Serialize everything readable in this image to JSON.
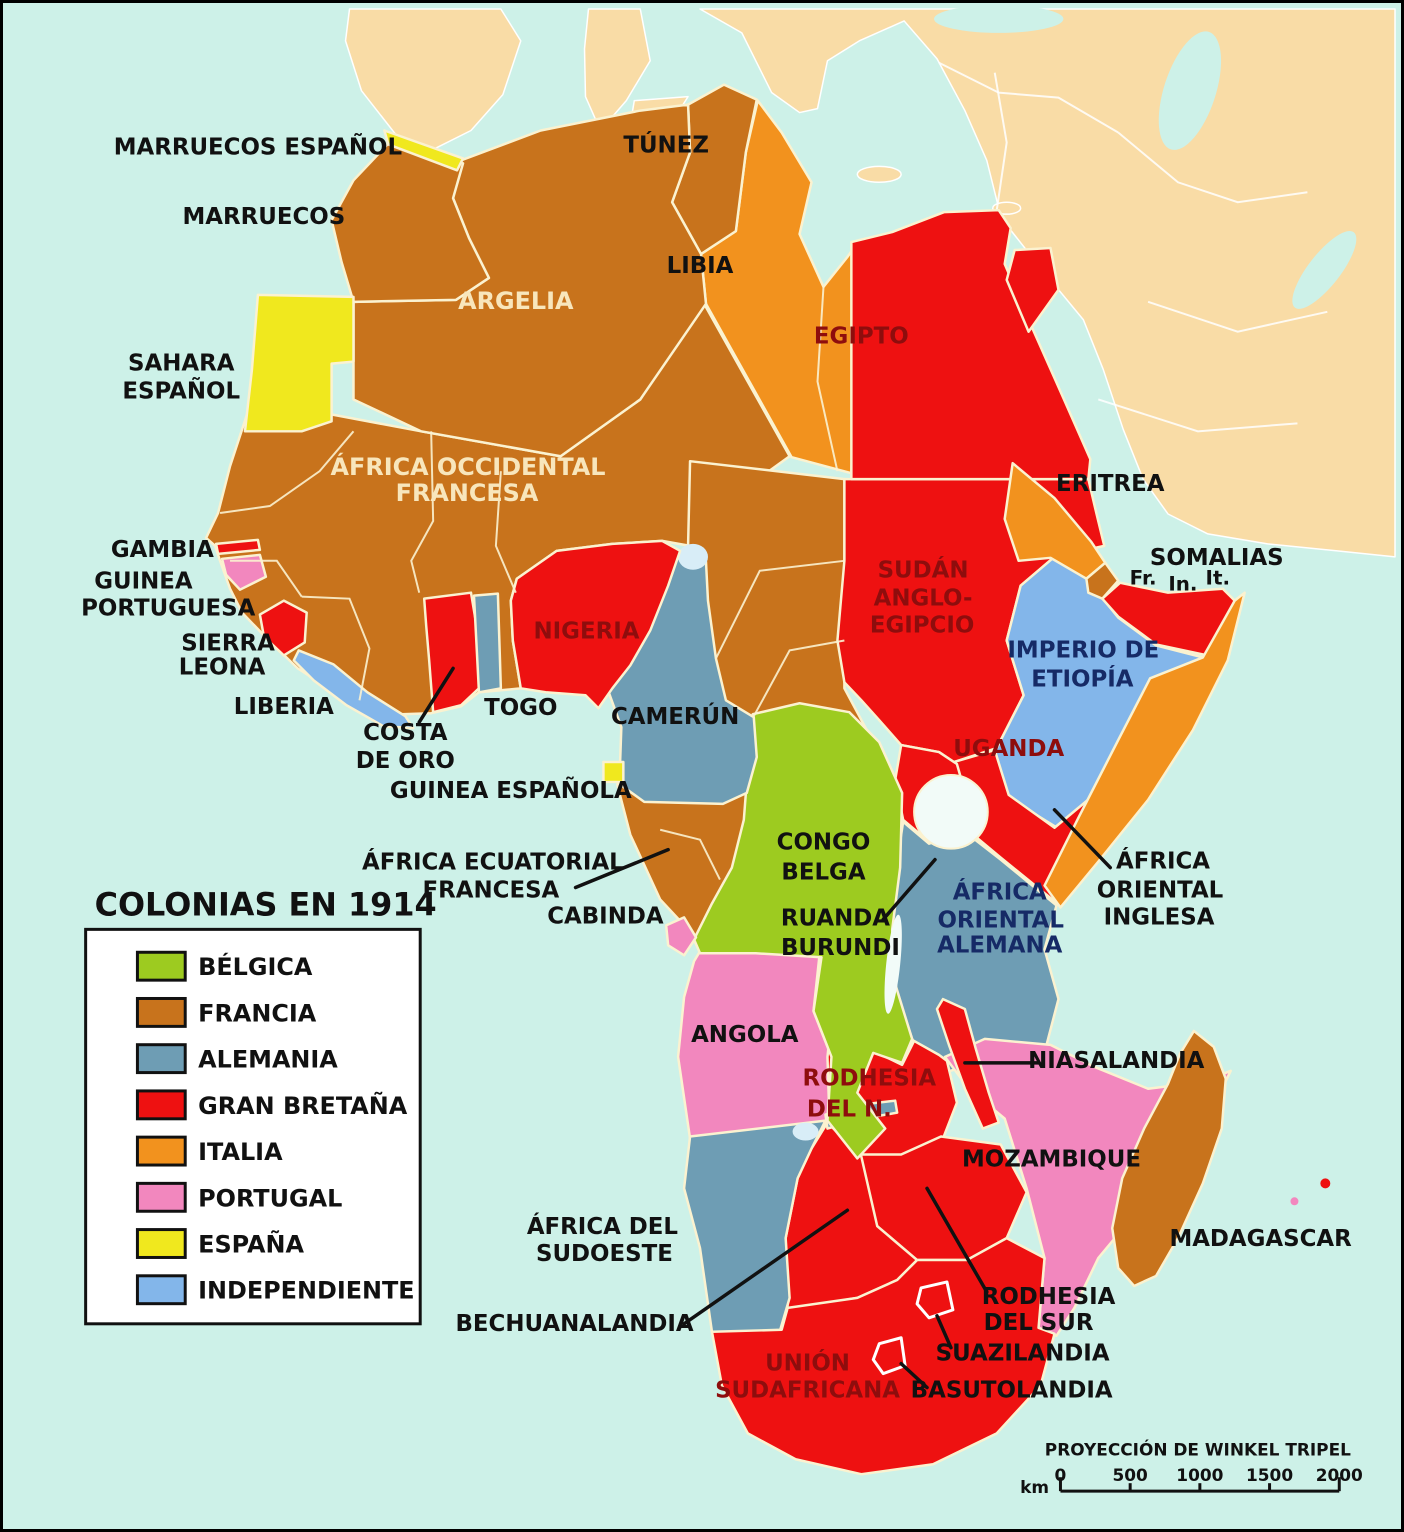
{
  "map": {
    "colors": {
      "sea": "#CDF1E8",
      "foreign_land": "#F9DCA6",
      "belgica": "#9DCB20",
      "francia": "#C8731C",
      "alemania": "#6E9DB4",
      "gran_bretana": "#EE1111",
      "italia": "#F2921E",
      "portugal": "#F287BE",
      "espana": "#F0E81E",
      "independiente": "#83B6EA",
      "lake": "#D8EDF7",
      "lake_white": "#F2FBF8",
      "legend_bg": "#FFFFFF",
      "label_black": "#111111",
      "label_cream": "#F8E6BC",
      "label_darkred": "#8E0D0D",
      "label_navy": "#162A66"
    },
    "labels": {
      "marruecos_espanol": "MARRUECOS ESPAÑOL",
      "marruecos": "MARRUECOS",
      "sahara_espanol": [
        "SAHARA",
        "ESPAÑOL"
      ],
      "argelia": "ARGELIA",
      "tunez": "TÚNEZ",
      "libia": "LIBIA",
      "egipto": "EGIPTO",
      "africa_occidental": [
        "ÁFRICA OCCIDENTAL",
        "FRANCESA"
      ],
      "gambia": "GAMBIA",
      "guinea_portuguesa": [
        "GUINEA",
        "PORTUGUESA"
      ],
      "sierra_leona": [
        "SIERRA",
        "LEONA"
      ],
      "liberia": "LIBERIA",
      "costa_de_oro": [
        "COSTA",
        "DE ORO"
      ],
      "togo": "TOGO",
      "guinea_espanola": "GUINEA ESPAÑOLA",
      "nigeria": "NIGERIA",
      "camerun": "CAMERÚN",
      "africa_ecuatorial": [
        "ÁFRICA ECUATORIAL",
        "FRANCESA"
      ],
      "cabinda": "CABINDA",
      "congo_belga": [
        "CONGO",
        "BELGA"
      ],
      "ruanda_burundi": [
        "RUANDA",
        "BURUNDI"
      ],
      "sudan": [
        "SUDÁN",
        "ANGLO-",
        "EGIPCIO"
      ],
      "eritrea": "ERITREA",
      "somalias": "SOMALIAS",
      "somalia_fr": "Fr.",
      "somalia_in": "In.",
      "somalia_it": "It.",
      "imperio_etiopia": [
        "IMPERIO DE",
        "ETIOPÍA"
      ],
      "uganda": "UGANDA",
      "africa_oriental_inglesa": [
        "ÁFRICA",
        "ORIENTAL",
        "INGLESA"
      ],
      "africa_oriental_alemana": [
        "ÁFRICA",
        "ORIENTAL",
        "ALEMANA"
      ],
      "angola": "ANGOLA",
      "rodhesia_norte": [
        "RODHESIA",
        "DEL N."
      ],
      "niasalandia": "NIASALANDIA",
      "mozambique": "MOZAMBIQUE",
      "madagascar": "MADAGASCAR",
      "africa_sudoeste": [
        "ÁFRICA DEL",
        "SUDOESTE"
      ],
      "bechuanalandia": "BECHUANALANDIA",
      "rodhesia_sur": [
        "RODHESIA",
        "DEL SUR"
      ],
      "suazilandia": "SUAZILANDIA",
      "basutolandia": "BASUTOLANDIA",
      "union_sudafricana": [
        "UNIÓN",
        "SUDAFRICANA"
      ]
    },
    "legend": {
      "title": "COLONIAS EN 1914",
      "items": [
        {
          "label": "BÉLGICA",
          "color": "belgica"
        },
        {
          "label": "FRANCIA",
          "color": "francia"
        },
        {
          "label": "ALEMANIA",
          "color": "alemania"
        },
        {
          "label": "GRAN BRETAÑA",
          "color": "gran_bretana"
        },
        {
          "label": "ITALIA",
          "color": "italia"
        },
        {
          "label": "PORTUGAL",
          "color": "portugal"
        },
        {
          "label": "ESPAÑA",
          "color": "espana"
        },
        {
          "label": "INDEPENDIENTE",
          "color": "independiente"
        }
      ]
    },
    "scale": {
      "projection": "PROYECCIÓN DE WINKEL TRIPEL",
      "unit": "km",
      "ticks": [
        "0",
        "500",
        "1000",
        "1500",
        "2000"
      ]
    }
  }
}
